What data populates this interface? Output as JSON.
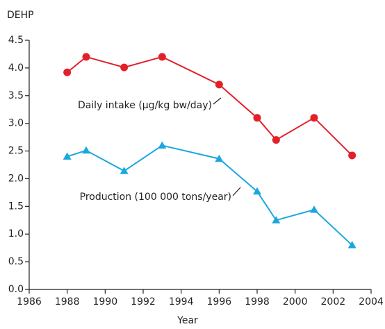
{
  "chart_data": {
    "type": "line",
    "y_label": "DEHP",
    "x_label": "Year",
    "x": [
      1988,
      1989,
      1991,
      1993,
      1996,
      1998,
      1999,
      2001,
      2003
    ],
    "series": [
      {
        "name": "Daily intake (µg/kg bw/day)",
        "color": "#e3202a",
        "marker": "circle",
        "values": [
          3.92,
          4.2,
          4.01,
          4.2,
          3.7,
          3.1,
          2.7,
          3.1,
          2.42
        ]
      },
      {
        "name": "Production (100 000 tons/year)",
        "color": "#1aa7e0",
        "marker": "triangle",
        "values": [
          2.4,
          2.51,
          2.14,
          2.6,
          2.36,
          1.77,
          1.25,
          1.44,
          0.8
        ]
      }
    ],
    "xlim": [
      1986,
      2004
    ],
    "xticks": [
      1986,
      1988,
      1990,
      1992,
      1994,
      1996,
      1998,
      2000,
      2002,
      2004
    ],
    "ylim": [
      0,
      4.5
    ],
    "yticks": [
      {
        "value": 0,
        "label": "0.0"
      },
      0.5,
      {
        "value": 1,
        "label": "1.0"
      },
      1.5,
      {
        "value": 2,
        "label": "2.0"
      },
      2.5,
      {
        "value": 3,
        "label": "3.0"
      },
      3.5,
      {
        "value": 4,
        "label": "4.0"
      },
      4.5
    ],
    "grid": false
  }
}
